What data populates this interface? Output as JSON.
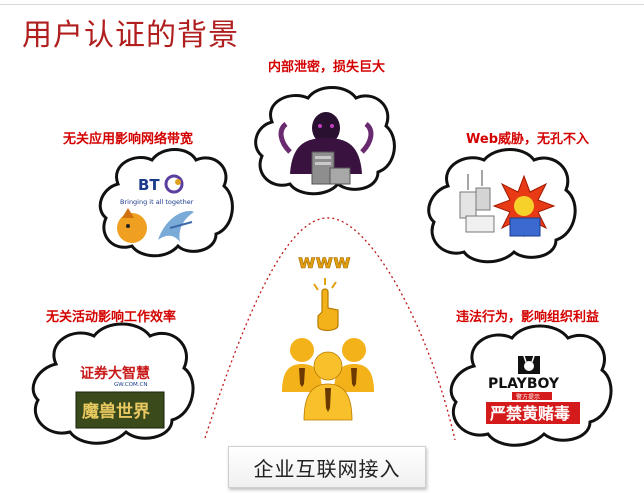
{
  "title": "用户认证的背景",
  "labels": {
    "top": "内部泄密，损失巨大",
    "left_top": "无关应用影响网络带宽",
    "right_top": "Web威胁，无孔不入",
    "left_bottom": "无关活动影响工作效率",
    "right_bottom": "违法行为，影响组织利益"
  },
  "center": {
    "www": "www",
    "bottom_label": "企业互联网接入"
  },
  "logos": {
    "bt": "BT",
    "bt_tagline": "Bringing it all together",
    "zhengquan": "证券大智慧",
    "zhengquan_url": "GW.COM.CN",
    "wow": "魔兽世界",
    "playboy": "PLAYBOY",
    "playboy_sub": "警方提示",
    "warning": "严禁黄赌毒"
  },
  "colors": {
    "title": "#b01e1e",
    "label": "#d40000"
  }
}
